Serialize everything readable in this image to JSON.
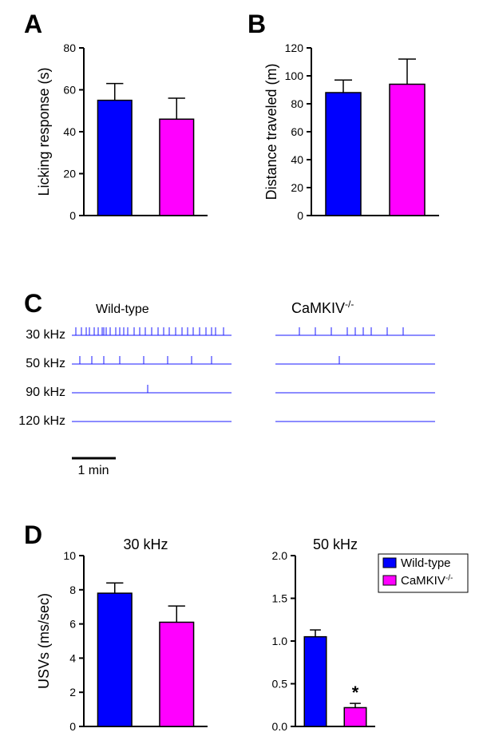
{
  "panelA": {
    "label": "A",
    "ylabel": "Licking response (s)",
    "ylim": [
      0,
      80
    ],
    "ytick_step": 20,
    "bars": [
      {
        "name": "wt",
        "value": 55,
        "error": 8,
        "color": "#0000ff"
      },
      {
        "name": "ko",
        "value": 46,
        "error": 10,
        "color": "#ff00ff"
      }
    ],
    "bar_width": 0.55
  },
  "panelB": {
    "label": "B",
    "ylabel": "Distance traveled (m)",
    "ylim": [
      0,
      120
    ],
    "ytick_step": 20,
    "bars": [
      {
        "name": "wt",
        "value": 88,
        "error": 9,
        "color": "#0000ff"
      },
      {
        "name": "ko",
        "value": 94,
        "error": 18,
        "color": "#ff00ff"
      }
    ],
    "bar_width": 0.55
  },
  "panelC": {
    "label": "C",
    "left_title": "Wild-type",
    "right_title": "CaMKIV⁻/⁻",
    "rows": [
      "30 kHz",
      "50 kHz",
      "90 kHz",
      "120 kHz"
    ],
    "scale_bar_label": "1 min",
    "trace_color": "#1a1aff",
    "wt_events": {
      "30": [
        5,
        12,
        18,
        22,
        28,
        33,
        38,
        40,
        43,
        48,
        55,
        60,
        65,
        70,
        78,
        85,
        92,
        100,
        108,
        115,
        122,
        130,
        138,
        145,
        152,
        160,
        168,
        175,
        180,
        190
      ],
      "50": [
        10,
        25,
        40,
        60,
        90,
        120,
        150,
        175
      ],
      "90": [
        95
      ],
      "120": []
    },
    "ko_events": {
      "30": [
        30,
        50,
        70,
        90,
        100,
        110,
        120,
        140,
        160
      ],
      "50": [
        80
      ],
      "90": [],
      "120": []
    }
  },
  "panelD": {
    "label": "D",
    "ylabel": "USVs (ms/sec)",
    "left": {
      "title": "30 kHz",
      "ylim": [
        0,
        10
      ],
      "ytick_step": 2,
      "bars": [
        {
          "name": "wt",
          "value": 7.8,
          "error": 0.6,
          "color": "#0000ff"
        },
        {
          "name": "ko",
          "value": 6.1,
          "error": 0.95,
          "color": "#ff00ff"
        }
      ]
    },
    "right": {
      "title": "50 kHz",
      "ylim": [
        0,
        2.0
      ],
      "ytick_step": 0.5,
      "bars": [
        {
          "name": "wt",
          "value": 1.05,
          "error": 0.08,
          "color": "#0000ff"
        },
        {
          "name": "ko",
          "value": 0.22,
          "error": 0.05,
          "color": "#ff00ff",
          "sig": "*"
        }
      ],
      "legend": [
        {
          "label": "Wild-type",
          "color": "#0000ff"
        },
        {
          "label": "CaMKIV⁻/⁻",
          "color": "#ff00ff"
        }
      ]
    }
  }
}
